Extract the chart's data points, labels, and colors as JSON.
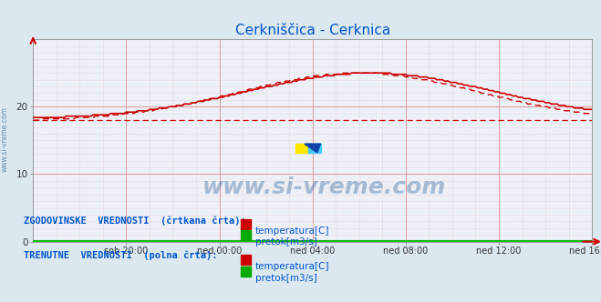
{
  "title": "Cerkniščica - Cerknica",
  "title_color": "#0055cc",
  "background_color": "#dce8f0",
  "plot_background": "#eef0f8",
  "grid_color_main": "#dd9999",
  "grid_color_minor": "#ddbbbb",
  "xlim": [
    0,
    24
  ],
  "ylim": [
    0,
    30
  ],
  "y_ticks": [
    0,
    10,
    20
  ],
  "x_tick_positions": [
    4,
    8,
    12,
    16,
    20,
    24
  ],
  "x_tick_labels": [
    "sob 20:00",
    "ned 00:00",
    "ned 04:00",
    "ned 08:00",
    "ned 12:00",
    "ned 16:00"
  ],
  "temp_color": "#cc0000",
  "flow_color": "#00bb00",
  "avg_line_val": 18.0,
  "watermark": "www.si-vreme.com",
  "watermark_color": "#336699",
  "watermark_alpha": 0.38,
  "legend_hist": "ZGODOVINSKE  VREDNOSTI  (črtkana črta):",
  "legend_curr": "TRENUTNE  VREDNOSTI  (polna črta):",
  "legend_temp": "temperatura[C]",
  "legend_flow": "pretok[m3/s]",
  "legend_color": "#0055cc",
  "ylabel_side": "www.si-vreme.com",
  "ylabel_color": "#336699",
  "axis_arrow_color": "#cc0000"
}
